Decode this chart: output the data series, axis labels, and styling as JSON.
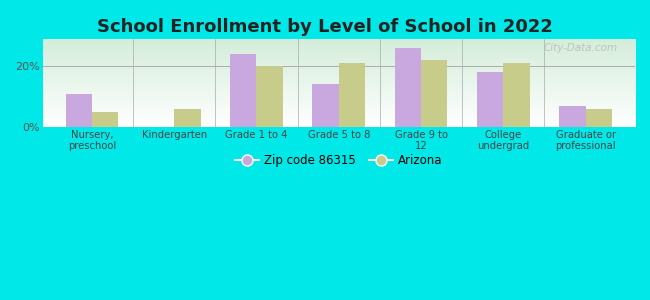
{
  "title": "School Enrollment by Level of School in 2022",
  "categories": [
    "Nursery,\npreschool",
    "Kindergarten",
    "Grade 1 to 4",
    "Grade 5 to 8",
    "Grade 9 to\n12",
    "College\nundergrad",
    "Graduate or\nprofessional"
  ],
  "zip_values": [
    11,
    0,
    24,
    14,
    26,
    18,
    7
  ],
  "az_values": [
    5,
    6,
    20,
    21,
    22,
    21,
    6
  ],
  "zip_color": "#c9a8e0",
  "az_color": "#c8cc8a",
  "background_outer": "#00e8e8",
  "title_color": "#222222",
  "title_fontsize": 13,
  "ylabel_ticks": [
    "0%",
    "20%"
  ],
  "yticks": [
    0,
    20
  ],
  "ylim": [
    0,
    29
  ],
  "legend_zip_label": "Zip code 86315",
  "legend_az_label": "Arizona",
  "watermark": "City-Data.com",
  "bar_width": 0.32,
  "chart_gradient_top": "#ffffff",
  "chart_gradient_bottom": "#d4edda"
}
